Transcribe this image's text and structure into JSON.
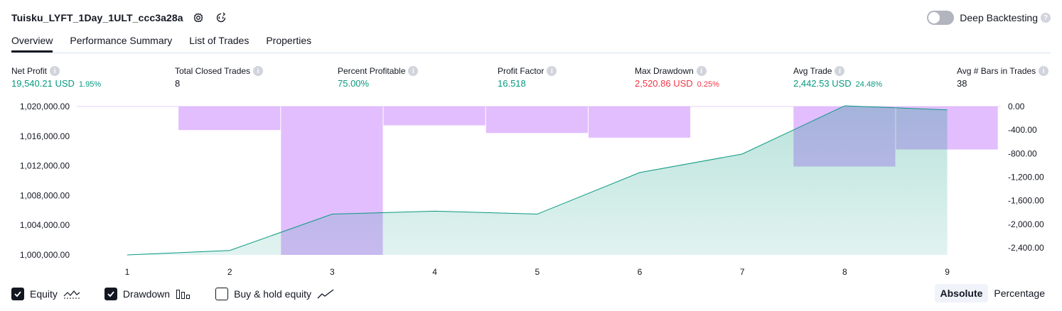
{
  "header": {
    "title": "Tuisku_LYFT_1Day_1ULT_ccc3a28a",
    "deep_backtesting_label": "Deep Backtesting",
    "help_glyph": "?"
  },
  "tabs": [
    {
      "label": "Overview"
    },
    {
      "label": "Performance Summary"
    },
    {
      "label": "List of Trades"
    },
    {
      "label": "Properties"
    }
  ],
  "stats": [
    {
      "label": "Net Profit",
      "value": "19,540.21 USD",
      "pct": "1.95%",
      "color": "green"
    },
    {
      "label": "Total Closed Trades",
      "value": "8",
      "pct": "",
      "color": "dark"
    },
    {
      "label": "Percent Profitable",
      "value": "75.00%",
      "pct": "",
      "color": "green"
    },
    {
      "label": "Profit Factor",
      "value": "16.518",
      "pct": "",
      "color": "green"
    },
    {
      "label": "Max Drawdown",
      "value": "2,520.86 USD",
      "pct": "0.25%",
      "color": "red"
    },
    {
      "label": "Avg Trade",
      "value": "2,442.53 USD",
      "pct": "24.48%",
      "color": "green"
    },
    {
      "label": "Avg # Bars in Trades",
      "value": "38",
      "pct": "",
      "color": "dark"
    }
  ],
  "chart_data": {
    "type": "line",
    "x": [
      1,
      2,
      3,
      4,
      5,
      6,
      7,
      8,
      9
    ],
    "series": [
      {
        "name": "Equity",
        "axis": "left",
        "style": "area-line",
        "color": "#089981",
        "values": [
          1000000,
          1000600,
          1005500,
          1005900,
          1005500,
          1011100,
          1013600,
          1020100,
          1019540
        ]
      },
      {
        "name": "Drawdown",
        "axis": "right",
        "style": "bar",
        "color": "#ce93fd",
        "values": [
          null,
          -400,
          -2520.86,
          -320,
          -450,
          -530,
          null,
          -1020,
          -730
        ]
      }
    ],
    "left_axis": {
      "ticks": [
        "1,000,000.00",
        "1,004,000.00",
        "1,008,000.00",
        "1,012,000.00",
        "1,016,000.00",
        "1,020,000.00"
      ],
      "ylim": [
        1000000,
        1020000
      ]
    },
    "right_axis": {
      "ticks": [
        "0.00",
        "-400.00",
        "-800.00",
        "-1,200.00",
        "-1,600.00",
        "-2,000.00",
        "-2,400.00"
      ],
      "ylim": [
        -2520.86,
        0
      ]
    },
    "x_ticks": [
      "1",
      "2",
      "3",
      "4",
      "5",
      "6",
      "7",
      "8",
      "9"
    ]
  },
  "footer": {
    "legend": [
      {
        "label": "Equity",
        "checked": true
      },
      {
        "label": "Drawdown",
        "checked": true
      },
      {
        "label": "Buy & hold equity",
        "checked": false
      }
    ],
    "modes": [
      {
        "label": "Absolute",
        "active": true
      },
      {
        "label": "Percentage",
        "active": false
      }
    ]
  }
}
